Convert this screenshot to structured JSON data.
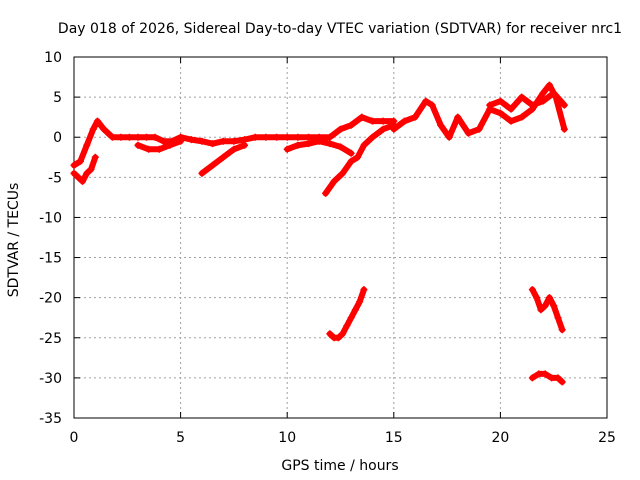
{
  "chart_data": {
    "type": "scatter",
    "title": "Day 018 of 2026, Sidereal Day-to-day VTEC variation (SDTVAR) for receiver nrc1",
    "xlabel": "GPS time / hours",
    "ylabel": "SDTVAR / TECUs",
    "xlim": [
      0,
      25
    ],
    "ylim": [
      -35,
      10
    ],
    "x_ticks": [
      "0",
      "5",
      "10",
      "15",
      "20",
      "25"
    ],
    "y_ticks": [
      "10",
      "5",
      "0",
      "-5",
      "-10",
      "-15",
      "-20",
      "-25",
      "-30",
      "-35"
    ],
    "grid": true,
    "legend": "none",
    "marker_color": "#ff0000",
    "series": [
      {
        "name": "baseline",
        "x": [
          0.0,
          0.3,
          0.6,
          0.9,
          1.1,
          1.4,
          1.8,
          2.2,
          2.6,
          3.0,
          3.4,
          3.8,
          4.2,
          4.6,
          5.0,
          5.5,
          6.0,
          6.5,
          7.0,
          7.5,
          8.0,
          8.5,
          9.0,
          9.5,
          10.0,
          10.5,
          11.0,
          11.5,
          12.0,
          12.5,
          13.0,
          13.5,
          14.0,
          14.5,
          15.0
        ],
        "y": [
          -3.5,
          -3.0,
          -1.0,
          1.0,
          2.0,
          1.0,
          0.0,
          0.0,
          0.0,
          0.0,
          0.0,
          0.0,
          -0.5,
          -0.5,
          0.0,
          -0.3,
          -0.5,
          -0.8,
          -0.5,
          -0.5,
          -0.3,
          0.0,
          0.0,
          0.0,
          0.0,
          0.0,
          0.0,
          0.0,
          0.0,
          1.0,
          1.5,
          2.5,
          2.0,
          2.0,
          2.0
        ]
      },
      {
        "name": "start-low",
        "x": [
          0.0,
          0.2,
          0.4,
          0.6,
          0.8,
          1.0
        ],
        "y": [
          -4.5,
          -5.0,
          -5.5,
          -4.5,
          -4.0,
          -2.5
        ]
      },
      {
        "name": "afternoon",
        "x": [
          15.0,
          15.5,
          16.0,
          16.5,
          16.8,
          17.2,
          17.6,
          18.0,
          18.5,
          19.0,
          19.5,
          20.0,
          20.5,
          21.0,
          21.5,
          22.0,
          22.3,
          22.6,
          23.0
        ],
        "y": [
          1.0,
          2.0,
          2.5,
          4.5,
          4.0,
          1.5,
          0.0,
          2.5,
          0.5,
          1.0,
          3.5,
          3.0,
          2.0,
          2.5,
          3.5,
          5.5,
          6.5,
          5.0,
          1.0
        ]
      },
      {
        "name": "afternoon-upper",
        "x": [
          19.5,
          20.0,
          20.5,
          21.0,
          21.5,
          22.0,
          22.5,
          23.0
        ],
        "y": [
          4.0,
          4.5,
          3.5,
          5.0,
          4.0,
          4.5,
          5.5,
          4.0
        ]
      },
      {
        "name": "dips",
        "x": [
          3.0,
          3.5,
          4.0,
          4.5,
          5.0
        ],
        "y": [
          -1.0,
          -1.5,
          -1.5,
          -1.0,
          -0.5
        ]
      },
      {
        "name": "evening-drop",
        "x": [
          6.0,
          6.5,
          7.0,
          7.5,
          8.0
        ],
        "y": [
          -4.5,
          -3.5,
          -2.5,
          -1.5,
          -1.0
        ]
      },
      {
        "name": "descent-rise",
        "x": [
          11.8,
          12.2,
          12.6,
          13.0,
          13.3,
          13.6,
          14.0,
          14.5,
          15.0
        ],
        "y": [
          -7.0,
          -5.5,
          -4.5,
          -3.0,
          -2.5,
          -1.0,
          0.0,
          1.0,
          1.5
        ]
      },
      {
        "name": "mid-lower",
        "x": [
          10.0,
          10.5,
          11.0,
          11.5,
          12.0,
          12.5,
          13.0
        ],
        "y": [
          -1.5,
          -1.0,
          -0.8,
          -0.5,
          -0.8,
          -1.2,
          -2.0
        ]
      },
      {
        "name": "arc-low",
        "x": [
          12.0,
          12.2,
          12.4,
          12.6,
          12.8,
          13.0,
          13.2,
          13.4,
          13.6
        ],
        "y": [
          -24.5,
          -25.0,
          -25.0,
          -24.5,
          -23.5,
          -22.5,
          -21.5,
          -20.5,
          -19.0
        ]
      },
      {
        "name": "late-drop",
        "x": [
          21.5,
          21.7,
          21.9,
          22.1,
          22.3,
          22.5,
          22.7,
          22.9
        ],
        "y": [
          -19.0,
          -20.0,
          -21.5,
          -21.0,
          -20.0,
          -21.0,
          -22.5,
          -24.0
        ]
      },
      {
        "name": "late-flat",
        "x": [
          21.5,
          21.8,
          22.1,
          22.4,
          22.7,
          22.9
        ],
        "y": [
          -30.0,
          -29.5,
          -29.5,
          -30.0,
          -30.0,
          -30.5
        ]
      }
    ]
  }
}
